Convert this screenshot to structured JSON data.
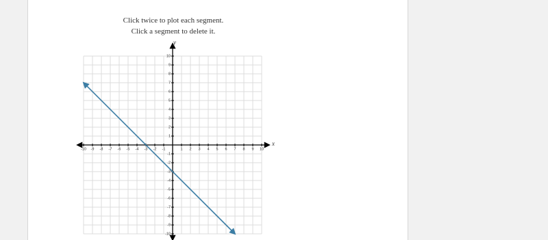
{
  "instructions": [
    "Click twice to plot each segment.",
    "Click a segment to delete it."
  ],
  "chart_data": {
    "type": "line",
    "x_label": "x",
    "y_label": "y",
    "xlim": [
      -10,
      10
    ],
    "ylim": [
      -10,
      10
    ],
    "xticks": [
      -10,
      -9,
      -8,
      -7,
      -6,
      -5,
      -4,
      -3,
      -2,
      -1,
      1,
      2,
      3,
      4,
      5,
      6,
      7,
      8,
      9,
      10
    ],
    "yticks": [
      -10,
      -9,
      -8,
      -7,
      -6,
      -5,
      -4,
      -3,
      -2,
      -1,
      1,
      2,
      3,
      4,
      5,
      6,
      7,
      8,
      9,
      10
    ],
    "grid": true,
    "series": [
      {
        "color": "#3c7ea5",
        "x": [
          -10,
          7
        ],
        "values": [
          7,
          -10
        ]
      }
    ]
  }
}
